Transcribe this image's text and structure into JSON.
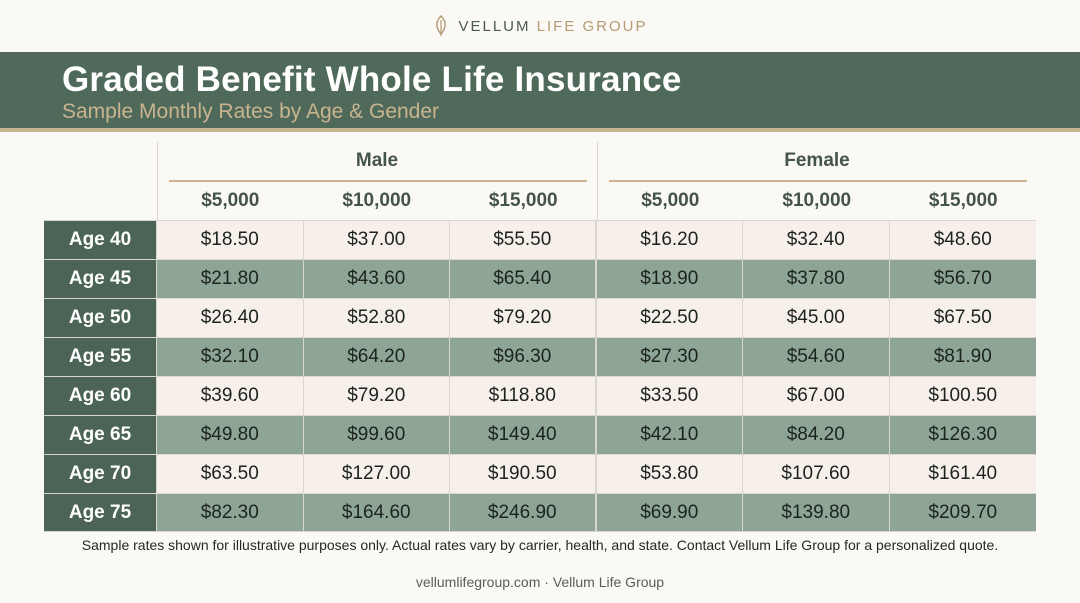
{
  "brand": {
    "name_primary": "VELLUM",
    "name_accent": "LIFE GROUP",
    "icon": "leaf-icon"
  },
  "header": {
    "title": "Graded Benefit Whole Life Insurance",
    "subtitle": "Sample Monthly Rates by Age & Gender"
  },
  "colors": {
    "banner": "#4f6a5a",
    "accent_gold": "#c9b48f",
    "row_label": "#4b6455",
    "row_light": "#f7f0ea",
    "row_dark": "#8ea596"
  },
  "chart_data": {
    "type": "table",
    "groups": [
      {
        "name": "Male",
        "columns": [
          "$5,000",
          "$10,000",
          "$15,000"
        ]
      },
      {
        "name": "Female",
        "columns": [
          "$5,000",
          "$10,000",
          "$15,000"
        ]
      }
    ],
    "rows": [
      {
        "label": "Age 40",
        "values": [
          "$18.50",
          "$37.00",
          "$55.50",
          "$16.20",
          "$32.40",
          "$48.60"
        ]
      },
      {
        "label": "Age 45",
        "values": [
          "$21.80",
          "$43.60",
          "$65.40",
          "$18.90",
          "$37.80",
          "$56.70"
        ]
      },
      {
        "label": "Age 50",
        "values": [
          "$26.40",
          "$52.80",
          "$79.20",
          "$22.50",
          "$45.00",
          "$67.50"
        ]
      },
      {
        "label": "Age 55",
        "values": [
          "$32.10",
          "$64.20",
          "$96.30",
          "$27.30",
          "$54.60",
          "$81.90"
        ]
      },
      {
        "label": "Age 60",
        "values": [
          "$39.60",
          "$79.20",
          "$118.80",
          "$33.50",
          "$67.00",
          "$100.50"
        ]
      },
      {
        "label": "Age 65",
        "values": [
          "$49.80",
          "$99.60",
          "$149.40",
          "$42.10",
          "$84.20",
          "$126.30"
        ]
      },
      {
        "label": "Age 70",
        "values": [
          "$63.50",
          "$127.00",
          "$190.50",
          "$53.80",
          "$107.60",
          "$161.40"
        ]
      },
      {
        "label": "Age 75",
        "values": [
          "$82.30",
          "$164.60",
          "$246.90",
          "$69.90",
          "$139.80",
          "$209.70"
        ]
      }
    ]
  },
  "disclaimer": "Sample rates shown for illustrative purposes only. Actual rates vary by carrier, health, and state. Contact Vellum Life Group for a personalized quote.",
  "footer": "vellumlifegroup.com · Vellum Life Group"
}
